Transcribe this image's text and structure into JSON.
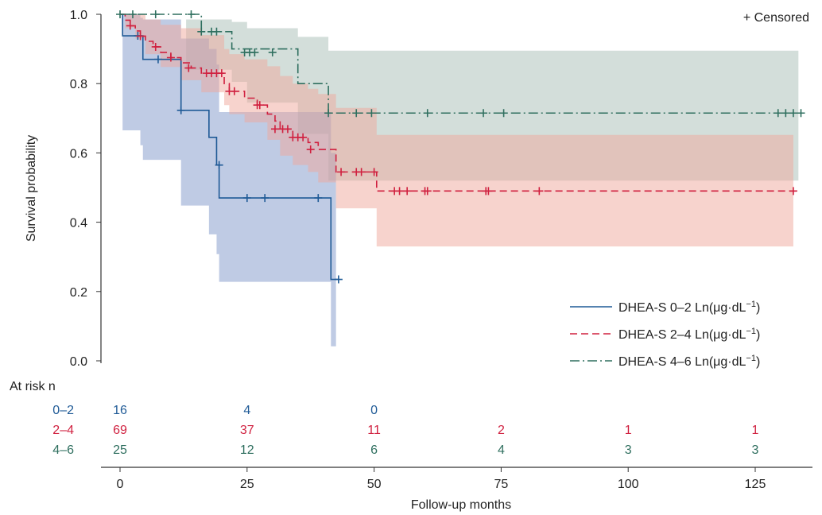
{
  "chart_data": {
    "type": "kaplan-meier",
    "xlabel": "Follow-up months",
    "ylabel": "Survival probability",
    "xlim": [
      -4,
      135.5
    ],
    "ylim": [
      0.0,
      1.0
    ],
    "xticks": [
      0,
      25,
      50,
      75,
      100,
      125
    ],
    "yticks": [
      0.0,
      0.2,
      0.4,
      0.6,
      0.8,
      1.0
    ],
    "xtick_labels": [
      "0",
      "25",
      "50",
      "75",
      "100",
      "125"
    ],
    "ytick_labels": [
      "0.0",
      "0.2",
      "0.4",
      "0.6",
      "0.8",
      "1.0"
    ],
    "censored_label": "+ Censored",
    "grid": false,
    "legend_position": "lower-right",
    "series": [
      {
        "name": "DHEA-S 0–2 Ln(μg·dL⁻¹)",
        "legend_text": "DHEA-S  0–2  Ln(μg·dL",
        "color": "#1f5a96",
        "band_color": "#7f97c9",
        "dash": "",
        "steps": [
          [
            0,
            1.0
          ],
          [
            0.5,
            0.938
          ],
          [
            4,
            0.938
          ],
          [
            4.5,
            0.87
          ],
          [
            12,
            0.723
          ],
          [
            17.5,
            0.645
          ],
          [
            19,
            0.565
          ],
          [
            19.5,
            0.47
          ],
          [
            41.5,
            0.235
          ]
        ],
        "end_x": 43,
        "ci": [
          [
            0,
            1.0,
            1.0
          ],
          [
            0.5,
            0.665,
            1.0
          ],
          [
            4,
            0.622,
            0.99
          ],
          [
            4.5,
            0.58,
            0.985
          ],
          [
            12,
            0.448,
            0.93
          ],
          [
            17.5,
            0.365,
            0.9
          ],
          [
            19,
            0.308,
            0.855
          ],
          [
            19.5,
            0.228,
            0.718
          ],
          [
            41.5,
            0.042,
            0.6
          ]
        ],
        "ci_end_x": 42.5,
        "censored": [
          [
            3.5,
            0.938
          ],
          [
            7.5,
            0.87
          ],
          [
            12,
            0.723
          ],
          [
            19.5,
            0.565
          ],
          [
            25,
            0.47
          ],
          [
            28.5,
            0.47
          ],
          [
            39,
            0.47
          ],
          [
            43,
            0.235
          ]
        ]
      },
      {
        "name": "DHEA-S 2–4 Ln(μg·dL⁻¹)",
        "legend_text": "DHEA-S  2–4  Ln(μg·dL",
        "color": "#d0203f",
        "band_color": "#f0a79c",
        "dash": "9,5",
        "steps": [
          [
            0,
            1.0
          ],
          [
            1,
            0.983
          ],
          [
            2,
            0.967
          ],
          [
            3,
            0.952
          ],
          [
            4,
            0.937
          ],
          [
            5,
            0.922
          ],
          [
            6.5,
            0.906
          ],
          [
            8,
            0.89
          ],
          [
            10,
            0.875
          ],
          [
            12,
            0.86
          ],
          [
            14,
            0.845
          ],
          [
            16,
            0.83
          ],
          [
            20.5,
            0.8
          ],
          [
            21.5,
            0.778
          ],
          [
            24.5,
            0.758
          ],
          [
            27,
            0.738
          ],
          [
            29,
            0.712
          ],
          [
            30.5,
            0.692
          ],
          [
            31.5,
            0.669
          ],
          [
            34,
            0.645
          ],
          [
            37,
            0.63
          ],
          [
            39,
            0.61
          ],
          [
            42.5,
            0.545
          ],
          [
            50.5,
            0.49
          ]
        ],
        "end_x": 133,
        "ci": [
          [
            0,
            1.0,
            1.0
          ],
          [
            1,
            0.96,
            1.0
          ],
          [
            3,
            0.93,
            1.0
          ],
          [
            5,
            0.885,
            0.985
          ],
          [
            8,
            0.848,
            0.97
          ],
          [
            12,
            0.81,
            0.96
          ],
          [
            16,
            0.775,
            0.94
          ],
          [
            20.5,
            0.738,
            0.9
          ],
          [
            21.5,
            0.712,
            0.885
          ],
          [
            24.5,
            0.688,
            0.87
          ],
          [
            29,
            0.638,
            0.85
          ],
          [
            31.5,
            0.592,
            0.822
          ],
          [
            34,
            0.565,
            0.8
          ],
          [
            37,
            0.545,
            0.785
          ],
          [
            39,
            0.515,
            0.77
          ],
          [
            42.5,
            0.44,
            0.73
          ],
          [
            50.5,
            0.33,
            0.652
          ]
        ],
        "ci_end_x": 132.5,
        "censored": [
          [
            2,
            0.967
          ],
          [
            4,
            0.937
          ],
          [
            7,
            0.906
          ],
          [
            10,
            0.875
          ],
          [
            13.5,
            0.845
          ],
          [
            17,
            0.83
          ],
          [
            18,
            0.83
          ],
          [
            19,
            0.83
          ],
          [
            20,
            0.83
          ],
          [
            21.5,
            0.778
          ],
          [
            22.5,
            0.778
          ],
          [
            27,
            0.738
          ],
          [
            27.5,
            0.738
          ],
          [
            30.5,
            0.669
          ],
          [
            32,
            0.669
          ],
          [
            33,
            0.669
          ],
          [
            34,
            0.645
          ],
          [
            35,
            0.645
          ],
          [
            36,
            0.645
          ],
          [
            37.5,
            0.61
          ],
          [
            43.5,
            0.545
          ],
          [
            46.5,
            0.545
          ],
          [
            47.5,
            0.545
          ],
          [
            50,
            0.545
          ],
          [
            54,
            0.49
          ],
          [
            55,
            0.49
          ],
          [
            56.5,
            0.49
          ],
          [
            60,
            0.49
          ],
          [
            60.5,
            0.49
          ],
          [
            72,
            0.49
          ],
          [
            72.5,
            0.49
          ],
          [
            82.5,
            0.49
          ],
          [
            132.5,
            0.49
          ]
        ]
      },
      {
        "name": "DHEA-S 4–6 Ln(μg·dL⁻¹)",
        "legend_text": "DHEA-S  4–6  Ln(μg·dL",
        "color": "#2f6f5f",
        "band_color": "#a7bdb5",
        "dash": "12,4,2,4",
        "steps": [
          [
            0,
            1.0
          ],
          [
            16,
            0.95
          ],
          [
            22,
            0.9
          ],
          [
            35,
            0.8
          ],
          [
            41,
            0.715
          ]
        ],
        "end_x": 134,
        "ci": [
          [
            0,
            1.0,
            1.0
          ],
          [
            13,
            0.84,
            0.985
          ],
          [
            22,
            0.805,
            0.978
          ],
          [
            25,
            0.745,
            0.96
          ],
          [
            35,
            0.655,
            0.935
          ],
          [
            41,
            0.52,
            0.895
          ]
        ],
        "ci_end_x": 133.5,
        "censored": [
          [
            0,
            1.0
          ],
          [
            2.5,
            1.0
          ],
          [
            7,
            1.0
          ],
          [
            14,
            1.0
          ],
          [
            16,
            0.95
          ],
          [
            18,
            0.95
          ],
          [
            19,
            0.95
          ],
          [
            24.5,
            0.89
          ],
          [
            25.5,
            0.89
          ],
          [
            26.5,
            0.89
          ],
          [
            30,
            0.89
          ],
          [
            41,
            0.715
          ],
          [
            46.5,
            0.715
          ],
          [
            49.5,
            0.715
          ],
          [
            60.5,
            0.715
          ],
          [
            71.5,
            0.715
          ],
          [
            75.5,
            0.715
          ],
          [
            129.5,
            0.715
          ],
          [
            131,
            0.715
          ],
          [
            132.5,
            0.715
          ],
          [
            134,
            0.715
          ]
        ]
      }
    ],
    "at_risk": {
      "title": "At risk n",
      "times": [
        0,
        25,
        50,
        75,
        100,
        125
      ],
      "rows": [
        {
          "label": "0–2",
          "color": "#1f5a96",
          "counts": [
            "16",
            "4",
            "0",
            "",
            "",
            ""
          ]
        },
        {
          "label": "2–4",
          "color": "#d0203f",
          "counts": [
            "69",
            "37",
            "11",
            "2",
            "1",
            "1"
          ]
        },
        {
          "label": "4–6",
          "color": "#2f6f5f",
          "counts": [
            "25",
            "12",
            "6",
            "4",
            "3",
            "3"
          ]
        }
      ]
    }
  }
}
